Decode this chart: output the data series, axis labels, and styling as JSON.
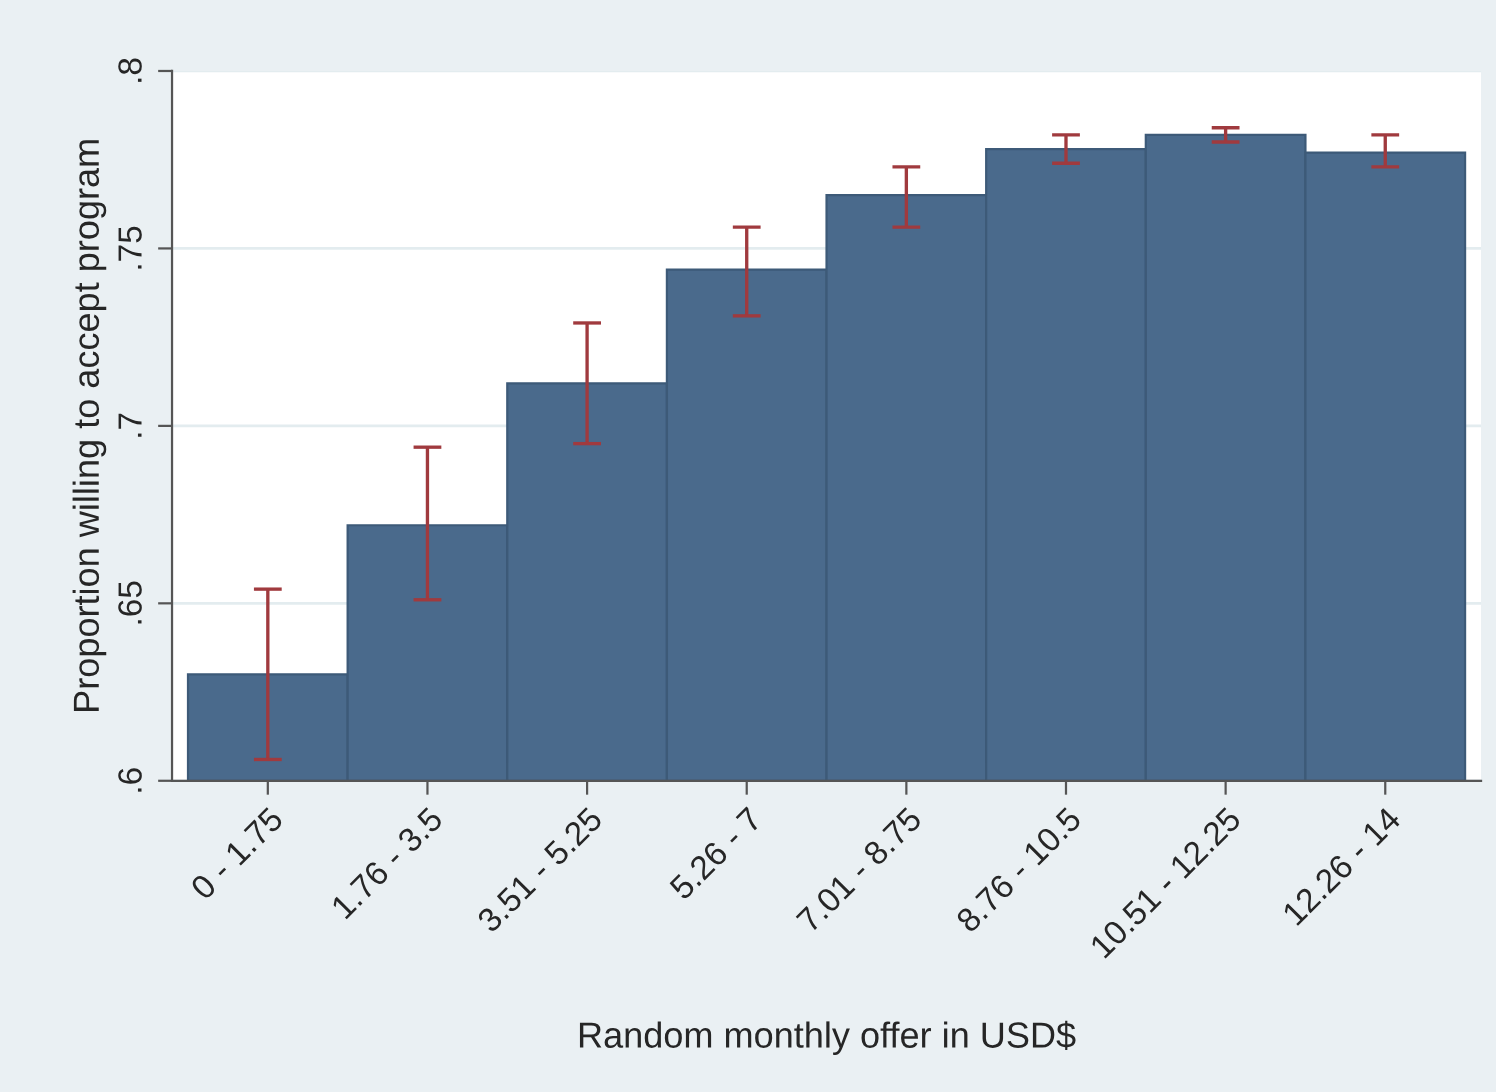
{
  "chart_data": {
    "type": "bar",
    "xlabel": "Random monthly offer in USD$",
    "ylabel": "Proportion willing to accept program",
    "categories": [
      "0 - 1.75",
      "1.76 - 3.5",
      "3.51 - 5.25",
      "5.26 - 7",
      "7.01 - 8.75",
      "8.76 - 10.5",
      "10.51 - 12.25",
      "12.26 - 14"
    ],
    "values": [
      0.63,
      0.672,
      0.712,
      0.744,
      0.765,
      0.778,
      0.782,
      0.777
    ],
    "errors": [
      [
        0.606,
        0.654
      ],
      [
        0.651,
        0.694
      ],
      [
        0.695,
        0.729
      ],
      [
        0.731,
        0.756
      ],
      [
        0.756,
        0.773
      ],
      [
        0.774,
        0.782
      ],
      [
        0.78,
        0.784
      ],
      [
        0.773,
        0.782
      ]
    ],
    "color": "#4a6a8c",
    "ylim": [
      0.6,
      0.8
    ],
    "yticks": [
      {
        "value": 0.6,
        "label": ".6"
      },
      {
        "value": 0.65,
        "label": ".65"
      },
      {
        "value": 0.7,
        "label": ".7"
      },
      {
        "value": 0.75,
        "label": ".75"
      },
      {
        "value": 0.8,
        "label": ".8"
      }
    ],
    "grid": "y"
  }
}
